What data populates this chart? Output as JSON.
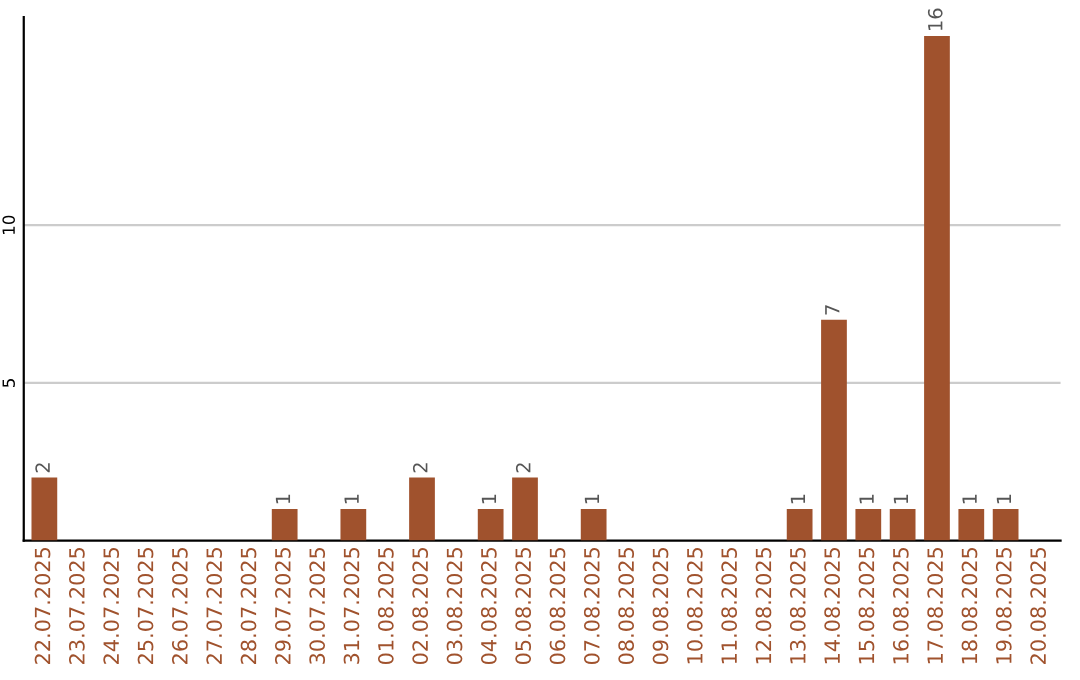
{
  "chart_data": {
    "type": "bar",
    "categories": [
      "22.07.2025",
      "23.07.2025",
      "24.07.2025",
      "25.07.2025",
      "26.07.2025",
      "27.07.2025",
      "28.07.2025",
      "29.07.2025",
      "30.07.2025",
      "31.07.2025",
      "01.08.2025",
      "02.08.2025",
      "03.08.2025",
      "04.08.2025",
      "05.08.2025",
      "06.08.2025",
      "07.08.2025",
      "08.08.2025",
      "09.08.2025",
      "10.08.2025",
      "11.08.2025",
      "12.08.2025",
      "13.08.2025",
      "14.08.2025",
      "15.08.2025",
      "16.08.2025",
      "17.08.2025",
      "18.08.2025",
      "19.08.2025",
      "20.08.2025"
    ],
    "values": [
      2,
      0,
      0,
      0,
      0,
      0,
      0,
      1,
      0,
      1,
      0,
      2,
      0,
      1,
      2,
      0,
      1,
      0,
      0,
      0,
      0,
      0,
      1,
      7,
      1,
      1,
      16,
      1,
      1,
      0
    ],
    "value_labels": [
      "2",
      null,
      null,
      null,
      null,
      null,
      null,
      "1",
      null,
      "1",
      null,
      "2",
      null,
      "1",
      "2",
      null,
      "1",
      null,
      null,
      null,
      null,
      null,
      "1",
      "7",
      "1",
      "1",
      "16",
      "1",
      "1",
      null
    ],
    "color": "#a0522d",
    "ylim": [
      0,
      16.6
    ],
    "yticks": [
      5,
      10
    ],
    "grid": "y"
  }
}
